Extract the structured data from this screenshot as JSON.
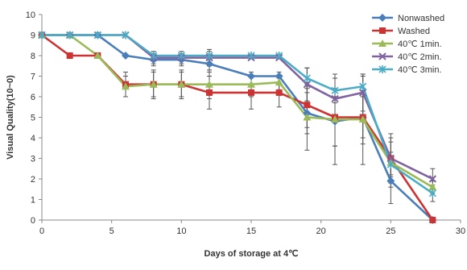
{
  "chart_data": {
    "type": "line",
    "title": "",
    "xlabel": "Days of storage at 4℃",
    "ylabel": "Visual Quality(10~0)",
    "xlim": [
      0,
      30
    ],
    "ylim": [
      0,
      10
    ],
    "xticks": [
      0,
      5,
      10,
      15,
      20,
      25,
      30
    ],
    "yticks": [
      0,
      1,
      2,
      3,
      4,
      5,
      6,
      7,
      8,
      9,
      10
    ],
    "grid": false,
    "legend_position": "top-right",
    "series": [
      {
        "name": "Nonwashed",
        "color": "#4a7ebb",
        "marker": "diamond",
        "x": [
          0,
          2,
          4,
          6,
          8,
          10,
          12,
          15,
          17,
          19,
          21,
          23,
          25,
          28
        ],
        "y": [
          9,
          9,
          9,
          8,
          7.8,
          7.8,
          7.6,
          7.0,
          7.0,
          5.2,
          4.8,
          5.0,
          1.9,
          0
        ],
        "error": [
          0,
          0,
          0,
          0,
          0.3,
          0.3,
          0.4,
          0,
          0,
          1.0,
          1.2,
          1.0,
          1.1,
          0
        ]
      },
      {
        "name": "Washed",
        "color": "#cc3333",
        "marker": "square",
        "x": [
          0,
          2,
          4,
          6,
          8,
          10,
          12,
          15,
          17,
          19,
          21,
          23,
          25,
          28
        ],
        "y": [
          9,
          8,
          8,
          6.6,
          6.6,
          6.6,
          6.2,
          6.2,
          6.2,
          5.6,
          5.0,
          5.0,
          3.0,
          0
        ],
        "error": [
          0,
          0,
          0,
          0.6,
          0.7,
          0.7,
          0.8,
          0.8,
          0.7,
          1.1,
          1.4,
          1.3,
          1.2,
          0
        ]
      },
      {
        "name": "40℃ 1min.",
        "color": "#9bbb59",
        "marker": "triangle",
        "x": [
          0,
          2,
          4,
          6,
          8,
          10,
          12,
          15,
          17,
          19,
          21,
          23,
          25,
          28
        ],
        "y": [
          9,
          9,
          8,
          6.5,
          6.6,
          6.6,
          6.6,
          6.6,
          6.7,
          5.0,
          4.9,
          4.9,
          2.8,
          1.6
        ],
        "error": [
          0,
          0,
          0,
          0.5,
          0.6,
          0.6,
          0.7,
          0.6,
          0.5,
          1.6,
          2.2,
          2.2,
          1.2,
          0.3
        ]
      },
      {
        "name": "40℃ 2min.",
        "color": "#8064a2",
        "marker": "x",
        "x": [
          0,
          2,
          4,
          6,
          8,
          10,
          12,
          15,
          17,
          19,
          21,
          23,
          25,
          28
        ],
        "y": [
          9,
          9,
          9,
          9,
          7.9,
          7.9,
          7.9,
          7.9,
          7.9,
          6.6,
          5.9,
          6.2,
          3.0,
          2.0
        ],
        "error": [
          0,
          0,
          0,
          0,
          0.3,
          0.3,
          0.4,
          0,
          0,
          0.8,
          1.0,
          0.9,
          0.8,
          0.5
        ]
      },
      {
        "name": "40℃ 3min.",
        "color": "#4bacc6",
        "marker": "star",
        "x": [
          0,
          2,
          4,
          6,
          8,
          10,
          12,
          15,
          17,
          19,
          21,
          23,
          25,
          28
        ],
        "y": [
          9,
          9,
          9,
          9,
          8.0,
          8.0,
          8.0,
          8.0,
          8.0,
          6.9,
          6.3,
          6.5,
          2.7,
          1.3
        ],
        "error": [
          0,
          0,
          0,
          0,
          0.2,
          0.2,
          0.2,
          0,
          0,
          0.5,
          0.6,
          0.5,
          0.6,
          0.4
        ]
      }
    ]
  }
}
